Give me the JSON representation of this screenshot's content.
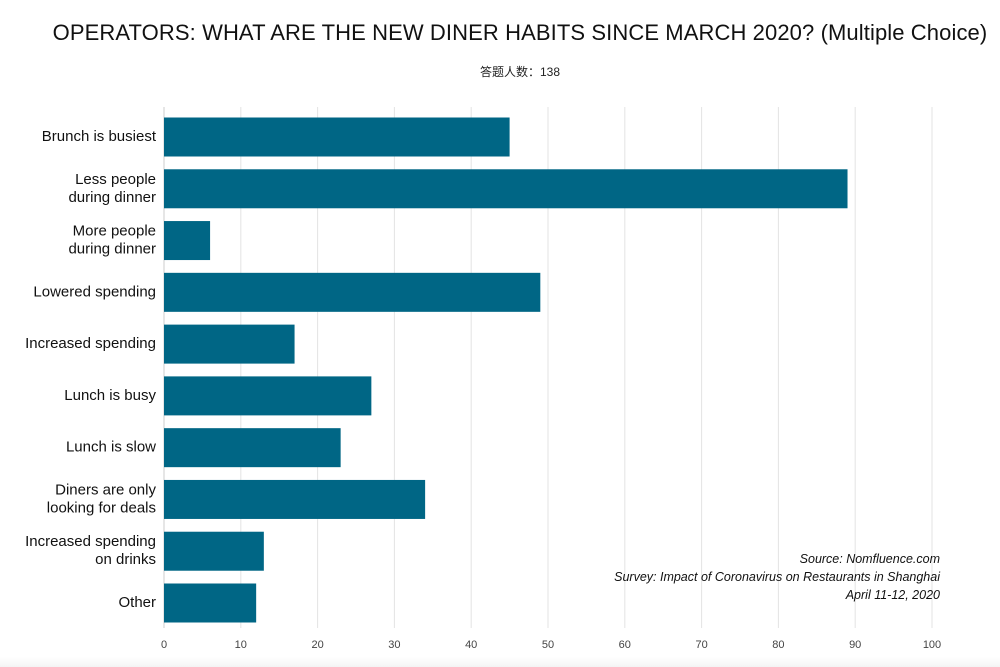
{
  "title": "OPERATORS: WHAT ARE THE NEW DINER HABITS SINCE MARCH 2020? (Multiple Choice)",
  "subtitle": "答题人数：138",
  "source": {
    "line1": "Source: Nomfluence.com",
    "line2": "Survey: Impact of Coronavirus on Restaurants in Shanghai",
    "line3": "April 11-12, 2020"
  },
  "colors": {
    "bar": "#006685",
    "grid": "#e3e3e3",
    "axis": "#cccccc"
  },
  "chart_data": {
    "type": "bar",
    "orientation": "horizontal",
    "categories": [
      "Brunch is busiest",
      "Less people during dinner",
      "More people during dinner",
      "Lowered spending",
      "Increased spending",
      "Lunch is busy",
      "Lunch is slow",
      "Diners are only looking for deals",
      "Increased spending on drinks",
      "Other"
    ],
    "category_lines": [
      [
        "Brunch is busiest"
      ],
      [
        "Less people",
        "during dinner"
      ],
      [
        "More people",
        "during dinner"
      ],
      [
        "Lowered spending"
      ],
      [
        "Increased spending"
      ],
      [
        "Lunch is busy"
      ],
      [
        "Lunch is slow"
      ],
      [
        "Diners are only",
        "looking for deals"
      ],
      [
        "Increased spending",
        "on drinks"
      ],
      [
        "Other"
      ]
    ],
    "values": [
      45,
      89,
      6,
      49,
      17,
      27,
      23,
      34,
      13,
      12
    ],
    "xlim": [
      0,
      100
    ],
    "xticks": [
      "0",
      "10",
      "20",
      "30",
      "40",
      "50",
      "60",
      "70",
      "80",
      "90",
      "100"
    ],
    "grid": true,
    "title": "OPERATORS: WHAT ARE THE NEW DINER HABITS SINCE MARCH 2020? (Multiple Choice)",
    "xlabel": "",
    "ylabel": ""
  }
}
